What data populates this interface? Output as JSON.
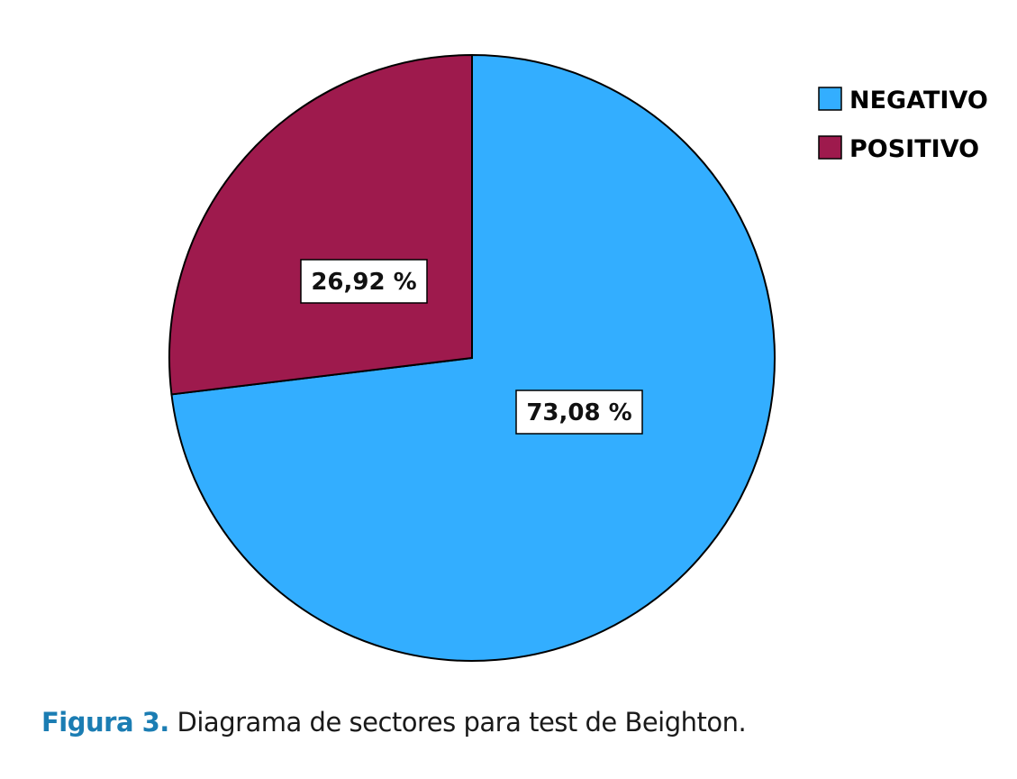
{
  "chart_data": {
    "type": "pie",
    "start_angle": "top, clockwise",
    "legend_position": "top-right",
    "slices": [
      {
        "name": "NEGATIVO",
        "value": 73.08,
        "label": "73,08 %",
        "color": "#33AEFF"
      },
      {
        "name": "POSITIVO",
        "value": 26.92,
        "label": "26,92 %",
        "color": "#9E1A4D"
      }
    ]
  },
  "caption": {
    "figure": "Figura 3.",
    "text": " Diagrama de sectores para test de Beighton."
  }
}
